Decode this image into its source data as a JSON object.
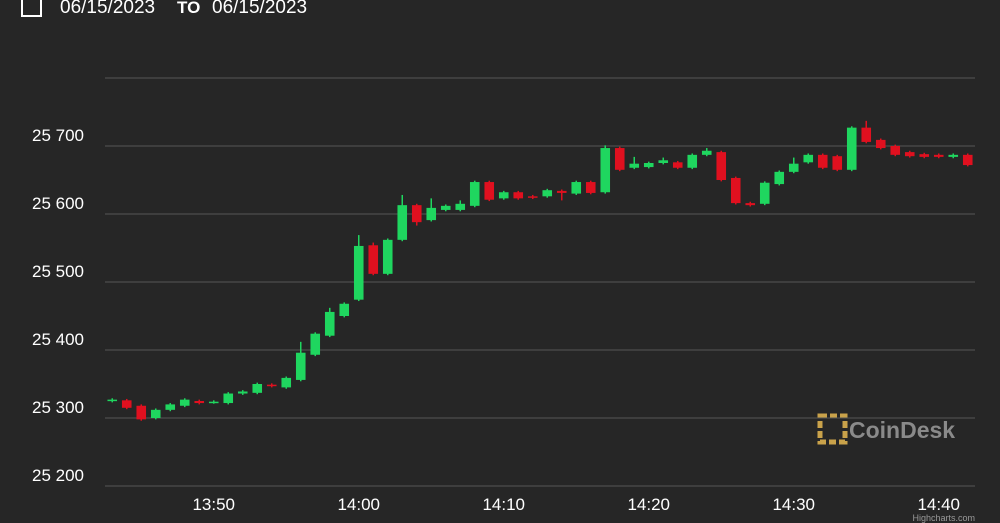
{
  "header": {
    "from": "06/15/2023",
    "separator": "TO",
    "to": "06/15/2023"
  },
  "watermark": "CoinDesk",
  "credits": "Highcharts.com",
  "chart_data": {
    "type": "candlestick",
    "categories": [
      null,
      null,
      null,
      null,
      null,
      null,
      null,
      "13:50",
      null,
      null,
      null,
      null,
      null,
      null,
      null,
      null,
      null,
      "14:00",
      null,
      null,
      null,
      null,
      null,
      null,
      null,
      null,
      null,
      "14:10",
      null,
      null,
      null,
      null,
      null,
      null,
      null,
      null,
      null,
      "14:20",
      null,
      null,
      null,
      null,
      null,
      null,
      null,
      null,
      null,
      "14:30",
      null,
      null,
      null,
      null,
      null,
      null,
      null,
      null,
      null,
      "14:40",
      null,
      null
    ],
    "open": [
      25325,
      25326,
      25318,
      25300,
      25312,
      25318,
      25325,
      25323,
      25322,
      25336,
      25337,
      25349,
      25345,
      25356,
      25393,
      25421,
      25450,
      25474,
      25554,
      25512,
      25562,
      25613,
      25591,
      25606,
      25606,
      25612,
      25647,
      25623,
      25632,
      25626,
      25626,
      25634,
      25630,
      25647,
      25632,
      25697,
      25668,
      25669,
      25675,
      25676,
      25668,
      25687,
      25691,
      25653,
      25616,
      25615,
      25644,
      25662,
      25676,
      25687,
      25685,
      25665,
      25727,
      25709,
      25700,
      25691,
      25688,
      25687,
      25684,
      25687
    ],
    "high": [
      25329,
      25328,
      25320,
      25314,
      25322,
      25329,
      25327,
      25326,
      25338,
      25341,
      25352,
      25351,
      25361,
      25412,
      25426,
      25462,
      25470,
      25569,
      25558,
      25564,
      25628,
      25615,
      25623,
      25614,
      25620,
      25649,
      25649,
      25634,
      25634,
      25628,
      25637,
      25636,
      25649,
      25649,
      25701,
      25699,
      25684,
      25677,
      25683,
      25678,
      25689,
      25697,
      25693,
      25655,
      25618,
      25648,
      25664,
      25683,
      25689,
      25689,
      25687,
      25729,
      25737,
      25711,
      25702,
      25693,
      25690,
      25689,
      25689,
      25689
    ],
    "low": [
      25323,
      25313,
      25296,
      25298,
      25310,
      25316,
      25320,
      25321,
      25320,
      25334,
      25335,
      25345,
      25343,
      25354,
      25391,
      25419,
      25448,
      25472,
      25510,
      25510,
      25560,
      25583,
      25589,
      25604,
      25604,
      25610,
      25619,
      25621,
      25621,
      25622,
      25624,
      25620,
      25628,
      25629,
      25630,
      25663,
      25666,
      25667,
      25673,
      25666,
      25666,
      25685,
      25648,
      25614,
      25611,
      25613,
      25642,
      25660,
      25674,
      25666,
      25663,
      25663,
      25704,
      25695,
      25685,
      25683,
      25682,
      25682,
      25682,
      25670
    ],
    "close": [
      25327,
      25315,
      25298,
      25312,
      25320,
      25327,
      25322,
      25324,
      25336,
      25339,
      25350,
      25347,
      25359,
      25396,
      25424,
      25456,
      25468,
      25553,
      25512,
      25562,
      25613,
      25588,
      25609,
      25612,
      25615,
      25647,
      25621,
      25632,
      25623,
      25624,
      25635,
      25631,
      25647,
      25631,
      25697,
      25665,
      25674,
      25675,
      25679,
      25668,
      25687,
      25693,
      25650,
      25616,
      25613,
      25646,
      25662,
      25674,
      25687,
      25668,
      25665,
      25727,
      25706,
      25697,
      25687,
      25685,
      25684,
      25684,
      25687,
      25672
    ],
    "up_color": "#1fd65f",
    "down_color": "#e0101f",
    "ylim": [
      25200,
      25800
    ],
    "yticks": [
      {
        "value": 25200,
        "label": "25 200"
      },
      {
        "value": 25300,
        "label": "25 300"
      },
      {
        "value": 25400,
        "label": "25 400"
      },
      {
        "value": 25500,
        "label": "25 500"
      },
      {
        "value": 25600,
        "label": "25 600"
      },
      {
        "value": 25700,
        "label": "25 700"
      },
      25800
    ],
    "grid": true
  }
}
